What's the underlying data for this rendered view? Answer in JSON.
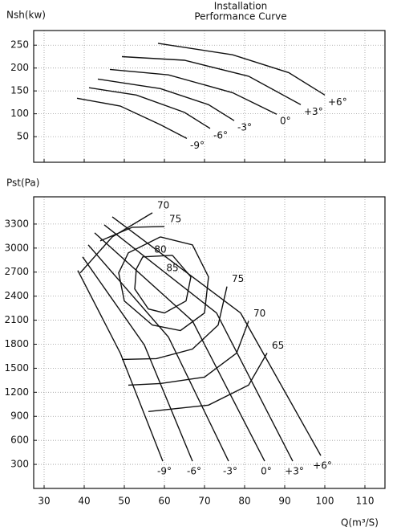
{
  "chart_data": [
    {
      "type": "line",
      "title_lines": [
        "Installation",
        "Performance Curve"
      ],
      "y_label": "Nsh(kw)",
      "xlim": [
        27.4,
        115
      ],
      "ylim": [
        -6,
        282
      ],
      "xticks": [
        30,
        40,
        50,
        60,
        70,
        80,
        90,
        100,
        110
      ],
      "xtick_labels": false,
      "yticks": [
        50,
        100,
        150,
        200,
        250
      ],
      "grid": true,
      "series": [
        {
          "name": "-9°",
          "color": "#111111",
          "x": [
            38.2,
            49,
            59,
            65.6
          ],
          "values": [
            134,
            117,
            76,
            46
          ]
        },
        {
          "name": "-6°",
          "color": "#111111",
          "x": [
            41.2,
            53,
            65,
            71.4
          ],
          "values": [
            157,
            141,
            103,
            68
          ]
        },
        {
          "name": "-3°",
          "color": "#111111",
          "x": [
            43.4,
            59,
            71,
            77.4
          ],
          "values": [
            176,
            155,
            120,
            85
          ]
        },
        {
          "name": "0°",
          "color": "#111111",
          "x": [
            46.4,
            61,
            77,
            88
          ],
          "values": [
            197,
            185,
            146,
            99
          ]
        },
        {
          "name": "+3°",
          "color": "#111111",
          "x": [
            49.4,
            65,
            81,
            94
          ],
          "values": [
            225,
            217,
            182,
            120
          ]
        },
        {
          "name": "+6°",
          "color": "#111111",
          "x": [
            58.4,
            77,
            91,
            100
          ],
          "values": [
            254,
            229,
            190,
            141
          ]
        }
      ]
    },
    {
      "type": "line",
      "y_label": "Pst(Pa)",
      "x_label": "Q(m³/S)",
      "xlim": [
        27.4,
        115
      ],
      "ylim": [
        0,
        3640
      ],
      "xticks": [
        30,
        40,
        50,
        60,
        70,
        80,
        90,
        100,
        110
      ],
      "xtick_labels": true,
      "yticks": [
        300,
        600,
        900,
        1200,
        1500,
        1800,
        2100,
        2400,
        2700,
        3000,
        3300
      ],
      "grid": true,
      "series": [
        {
          "name": "-9°",
          "color": "#111111",
          "x": [
            38.4,
            49,
            59.6
          ],
          "values": [
            2720,
            1690,
            340
          ]
        },
        {
          "name": "-6°",
          "color": "#111111",
          "x": [
            39.6,
            55,
            67
          ],
          "values": [
            2890,
            1790,
            340
          ]
        },
        {
          "name": "-3°",
          "color": "#111111",
          "x": [
            41,
            61,
            76
          ],
          "values": [
            3040,
            1890,
            340
          ]
        },
        {
          "name": "0°",
          "color": "#111111",
          "x": [
            42.6,
            67,
            85
          ],
          "values": [
            3190,
            2090,
            340
          ]
        },
        {
          "name": "+3°",
          "color": "#111111",
          "x": [
            45,
            73,
            92
          ],
          "values": [
            3290,
            2190,
            340
          ]
        },
        {
          "name": "+6°",
          "color": "#111111",
          "x": [
            47,
            79,
            99
          ],
          "values": [
            3390,
            2190,
            410
          ]
        }
      ],
      "efficiency": [
        {
          "name": "70",
          "color": "#111111",
          "x": [
            57,
            47,
            39,
            null,
            81,
            78,
            70,
            59,
            51
          ],
          "values": [
            3440,
            3140,
            2690,
            null,
            2090,
            1690,
            1390,
            1310,
            1290
          ]
        },
        {
          "name": "75",
          "color": "#111111",
          "x": [
            60,
            52,
            44,
            null,
            75.6,
            73.4,
            67,
            58,
            49.4
          ],
          "values": [
            3270,
            3260,
            3090,
            null,
            2520,
            2040,
            1740,
            1620,
            1610
          ]
        },
        {
          "name": "80",
          "color": "#111111",
          "x": [
            59,
            67,
            71,
            70,
            64,
            57,
            50,
            48.6,
            51,
            59
          ],
          "values": [
            3140,
            3040,
            2640,
            2190,
            1970,
            2040,
            2340,
            2690,
            2940,
            3140
          ]
        },
        {
          "name": "85",
          "color": "#111111",
          "x": [
            62,
            66.6,
            65.4,
            60,
            56,
            52.6,
            53,
            54.6,
            62
          ],
          "values": [
            2910,
            2640,
            2340,
            2190,
            2240,
            2490,
            2740,
            2890,
            2910
          ]
        },
        {
          "name": "65",
          "color": "#111111",
          "x": [
            85.6,
            81,
            71,
            56
          ],
          "values": [
            1690,
            1290,
            1040,
            960
          ]
        }
      ]
    }
  ]
}
